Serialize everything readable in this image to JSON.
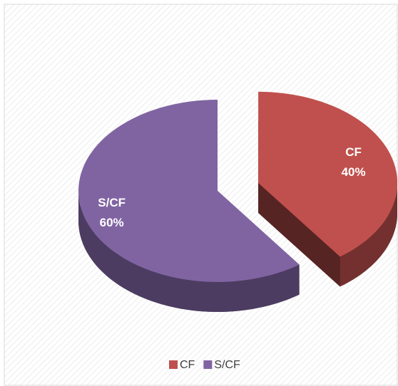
{
  "chart_data": {
    "type": "pie",
    "categories": [
      "CF",
      "S/CF"
    ],
    "values": [
      40,
      60
    ],
    "value_labels": [
      "40%",
      "60%"
    ],
    "colors": [
      "#c0504d",
      "#8064a2"
    ],
    "explode": [
      0
    ],
    "legend": "bottom"
  }
}
